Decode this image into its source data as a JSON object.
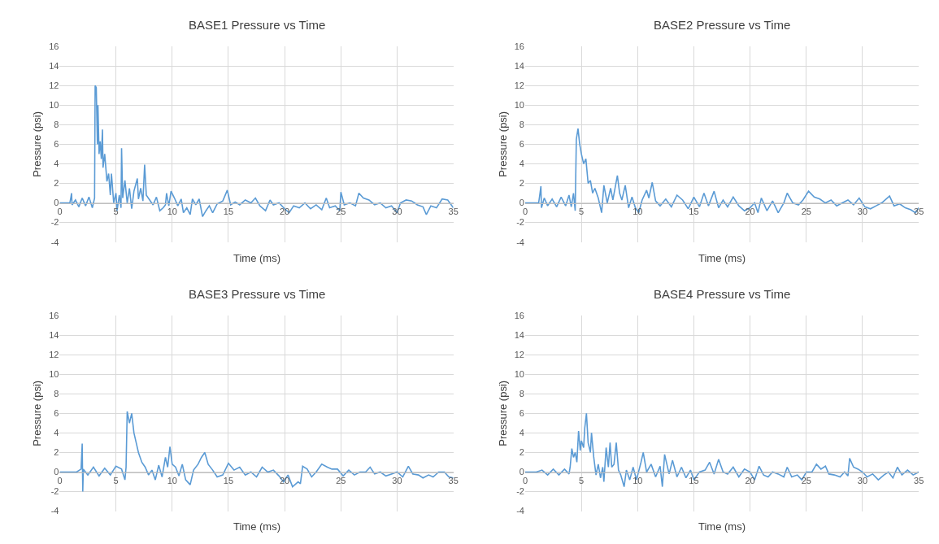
{
  "chart_data": [
    {
      "type": "line",
      "title": "BASE1 Pressure vs Time",
      "xlabel": "Time (ms)",
      "ylabel": "Pressure (psi)",
      "color": "#5b9bd5",
      "xlim": [
        0,
        35
      ],
      "ylim": [
        -4,
        16
      ],
      "xticks": [
        0,
        5,
        10,
        15,
        20,
        25,
        30,
        35
      ],
      "yticks": [
        -4,
        -2,
        0,
        2,
        4,
        6,
        8,
        10,
        12,
        14,
        16
      ],
      "grid": true,
      "x": [
        0,
        0.9,
        1.0,
        1.05,
        1.1,
        1.4,
        1.7,
        2.0,
        2.3,
        2.6,
        2.9,
        3.1,
        3.15,
        3.25,
        3.35,
        3.4,
        3.5,
        3.6,
        3.7,
        3.8,
        3.85,
        4.0,
        4.2,
        4.35,
        4.5,
        4.6,
        4.8,
        5.0,
        5.1,
        5.3,
        5.45,
        5.5,
        5.6,
        5.8,
        6.0,
        6.2,
        6.4,
        6.6,
        6.9,
        7.0,
        7.2,
        7.4,
        7.55,
        7.7,
        8.0,
        8.3,
        8.6,
        8.9,
        9.2,
        9.4,
        9.5,
        9.7,
        9.9,
        10.2,
        10.5,
        10.8,
        11.0,
        11.3,
        11.6,
        11.8,
        12.1,
        12.4,
        12.7,
        13.0,
        13.3,
        13.6,
        14.0,
        14.5,
        14.9,
        15.2,
        15.6,
        16.0,
        16.5,
        17.0,
        17.4,
        17.8,
        18.3,
        18.7,
        19.0,
        19.5,
        20.0,
        20.4,
        20.8,
        21.3,
        21.8,
        22.3,
        22.8,
        23.3,
        23.7,
        24.0,
        24.5,
        24.9,
        25.0,
        25.3,
        25.8,
        26.3,
        26.6,
        27.0,
        27.5,
        28.0,
        28.5,
        29.0,
        29.5,
        30.0,
        30.3,
        30.8,
        31.3,
        31.8,
        32.3,
        32.6,
        33.0,
        33.5,
        34.0,
        34.5,
        35.0
      ],
      "values": [
        0,
        0,
        0.6,
        1.0,
        -0.2,
        0.3,
        -0.4,
        0.5,
        -0.3,
        0.6,
        -0.5,
        0.5,
        12.0,
        11.8,
        6,
        10,
        5,
        6.3,
        4.5,
        7.5,
        3.6,
        5.0,
        2.2,
        3.0,
        0.8,
        3.0,
        0.0,
        1.0,
        -0.8,
        0.8,
        -0.5,
        5.6,
        0.5,
        2.3,
        0.0,
        1.5,
        -0.6,
        1.2,
        2.5,
        0.4,
        1.5,
        0.2,
        3.9,
        0.8,
        0.3,
        -0.2,
        0.6,
        -0.8,
        -0.5,
        -0.2,
        1.0,
        -0.3,
        1.2,
        0.5,
        -0.3,
        0.4,
        -1.0,
        -0.5,
        -1.2,
        0.4,
        -0.2,
        0.4,
        -1.4,
        -0.8,
        -0.3,
        -1.0,
        -0.1,
        0.2,
        1.3,
        -0.2,
        0.1,
        -0.2,
        0.3,
        0.0,
        0.5,
        -0.3,
        -0.8,
        0.3,
        -0.2,
        0.0,
        -0.6,
        -1.0,
        -0.3,
        -0.5,
        0.0,
        -0.6,
        -0.2,
        -0.7,
        0.5,
        -0.5,
        -0.3,
        -0.8,
        1.1,
        -0.2,
        0.0,
        -0.3,
        1.0,
        0.5,
        0.3,
        -0.2,
        0.0,
        -0.5,
        -0.3,
        -1.0,
        0.0,
        0.3,
        0.2,
        -0.2,
        -0.4,
        -1.2,
        -0.3,
        -0.5,
        0.4,
        0.3,
        -0.5
      ]
    },
    {
      "type": "line",
      "title": "BASE2 Pressure vs Time",
      "xlabel": "Time (ms)",
      "ylabel": "Pressure (psi)",
      "color": "#5b9bd5",
      "xlim": [
        0,
        35
      ],
      "ylim": [
        -4,
        16
      ],
      "xticks": [
        0,
        5,
        10,
        15,
        20,
        25,
        30,
        35
      ],
      "yticks": [
        -4,
        -2,
        0,
        2,
        4,
        6,
        8,
        10,
        12,
        14,
        16
      ],
      "grid": true,
      "x": [
        0,
        1.2,
        1.3,
        1.4,
        1.45,
        1.7,
        2.0,
        2.4,
        2.8,
        3.2,
        3.6,
        3.9,
        4.1,
        4.3,
        4.45,
        4.55,
        4.7,
        4.85,
        5.0,
        5.2,
        5.4,
        5.6,
        5.8,
        6.0,
        6.2,
        6.5,
        6.8,
        7.0,
        7.3,
        7.6,
        7.8,
        8.2,
        8.4,
        8.6,
        8.9,
        9.2,
        9.5,
        9.8,
        10.1,
        10.4,
        10.8,
        11.0,
        11.3,
        11.6,
        12.0,
        12.5,
        13.0,
        13.5,
        14.0,
        14.5,
        15.0,
        15.5,
        15.9,
        16.3,
        16.8,
        17.2,
        17.6,
        18.0,
        18.5,
        19.0,
        19.5,
        20.0,
        20.4,
        20.7,
        21.0,
        21.5,
        22.0,
        22.5,
        23.0,
        23.3,
        23.8,
        24.3,
        24.7,
        25.2,
        25.7,
        26.2,
        26.7,
        27.2,
        27.7,
        28.2,
        28.7,
        29.2,
        29.7,
        30.2,
        30.7,
        31.2,
        31.7,
        32.4,
        32.8,
        33.3,
        33.8,
        34.3,
        34.7,
        35.0
      ],
      "values": [
        0,
        0,
        0.8,
        1.7,
        -0.5,
        0.5,
        -0.3,
        0.4,
        -0.4,
        0.6,
        -0.3,
        0.8,
        -0.4,
        1.0,
        -0.8,
        6.5,
        7.6,
        6.0,
        5.0,
        4.0,
        4.5,
        2.0,
        2.3,
        1.0,
        1.5,
        0.5,
        -1.0,
        1.8,
        0.0,
        1.5,
        0.3,
        2.8,
        1.0,
        0.3,
        1.8,
        -0.5,
        0.6,
        -0.5,
        -1.0,
        0.3,
        1.3,
        0.5,
        2.1,
        0.2,
        -0.3,
        0.4,
        -0.4,
        0.8,
        0.3,
        -0.6,
        0.6,
        -0.4,
        1.0,
        -0.3,
        1.2,
        -0.5,
        0.3,
        -0.4,
        0.6,
        -0.3,
        -0.8,
        -0.5,
        0.0,
        -1.0,
        0.5,
        -0.8,
        0.2,
        -1.0,
        0.0,
        1.0,
        0.0,
        -0.2,
        0.3,
        1.2,
        0.6,
        0.4,
        0.0,
        0.3,
        -0.3,
        0.0,
        0.3,
        -0.2,
        0.5,
        -0.4,
        -0.6,
        -0.3,
        0.0,
        0.7,
        -0.3,
        -0.1,
        -0.5,
        -0.7,
        -1.0,
        -0.5
      ]
    },
    {
      "type": "line",
      "title": "BASE3 Pressure vs Time",
      "xlabel": "Time (ms)",
      "ylabel": "Pressure (psi)",
      "color": "#5b9bd5",
      "xlim": [
        0,
        35
      ],
      "ylim": [
        -4,
        16
      ],
      "xticks": [
        0,
        5,
        10,
        15,
        20,
        25,
        30,
        35
      ],
      "yticks": [
        -4,
        -2,
        0,
        2,
        4,
        6,
        8,
        10,
        12,
        14,
        16
      ],
      "grid": true,
      "x": [
        0,
        1.5,
        1.9,
        2.0,
        2.05,
        2.1,
        2.5,
        3.0,
        3.5,
        4.0,
        4.5,
        5.0,
        5.5,
        5.8,
        5.9,
        6.0,
        6.2,
        6.4,
        6.6,
        6.8,
        7.0,
        7.3,
        7.6,
        7.9,
        8.2,
        8.5,
        8.8,
        9.1,
        9.4,
        9.6,
        9.8,
        10.0,
        10.3,
        10.6,
        10.9,
        11.2,
        11.6,
        11.9,
        12.3,
        12.6,
        12.9,
        13.2,
        13.6,
        14.0,
        14.5,
        15.0,
        15.5,
        16.0,
        16.5,
        17.0,
        17.5,
        18.0,
        18.5,
        19.0,
        19.5,
        19.9,
        20.3,
        20.7,
        21.2,
        21.4,
        21.6,
        22.0,
        22.4,
        22.8,
        23.3,
        23.8,
        24.2,
        24.7,
        25.2,
        25.7,
        26.2,
        26.7,
        27.2,
        27.6,
        28.0,
        28.5,
        29.0,
        29.5,
        30.0,
        30.5,
        31.0,
        31.4,
        31.9,
        32.3,
        32.8,
        33.2,
        33.7,
        34.2,
        34.6,
        35.0
      ],
      "values": [
        0,
        0,
        0.3,
        2.9,
        -2.0,
        0.3,
        -0.3,
        0.5,
        -0.4,
        0.4,
        -0.3,
        0.6,
        0.3,
        -0.8,
        0.5,
        6.2,
        5.0,
        6.0,
        4.0,
        3.0,
        2.0,
        1.0,
        0.5,
        -0.3,
        0.2,
        -0.8,
        0.7,
        -0.5,
        1.5,
        0.5,
        2.6,
        0.8,
        0.5,
        -0.4,
        0.8,
        -0.8,
        -1.3,
        0.2,
        0.8,
        1.5,
        2.0,
        0.8,
        0.2,
        -0.5,
        -0.3,
        0.9,
        0.2,
        0.5,
        -0.3,
        0.0,
        -0.5,
        0.5,
        0.0,
        0.2,
        -0.4,
        -1.0,
        -0.3,
        -1.5,
        -1.0,
        -1.2,
        0.6,
        0.3,
        -0.5,
        0.0,
        0.8,
        0.5,
        0.3,
        0.3,
        -0.4,
        0.2,
        -0.3,
        0.0,
        0.0,
        0.5,
        -0.2,
        0.0,
        -0.4,
        -0.2,
        0.0,
        -0.5,
        0.6,
        -0.2,
        -0.3,
        -0.6,
        -0.3,
        -0.5,
        0.0,
        0.0,
        -0.5,
        -0.6
      ]
    },
    {
      "type": "line",
      "title": "BASE4 Pressure vs Time",
      "xlabel": "Time (ms)",
      "ylabel": "Pressure (psi)",
      "color": "#5b9bd5",
      "xlim": [
        0,
        35
      ],
      "ylim": [
        -4,
        16
      ],
      "xticks": [
        0,
        5,
        10,
        15,
        20,
        25,
        30,
        35
      ],
      "yticks": [
        -4,
        -2,
        0,
        2,
        4,
        6,
        8,
        10,
        12,
        14,
        16
      ],
      "grid": true,
      "x": [
        0,
        1.0,
        1.5,
        2.0,
        2.5,
        3.0,
        3.5,
        3.9,
        4.0,
        4.15,
        4.3,
        4.45,
        4.6,
        4.75,
        4.9,
        5.0,
        5.2,
        5.3,
        5.45,
        5.6,
        5.8,
        5.9,
        6.1,
        6.3,
        6.5,
        6.7,
        6.9,
        7.0,
        7.2,
        7.4,
        7.55,
        7.7,
        7.9,
        8.1,
        8.3,
        8.5,
        8.8,
        9.0,
        9.3,
        9.6,
        9.9,
        10.3,
        10.5,
        10.8,
        11.2,
        11.6,
        12.0,
        12.2,
        12.4,
        12.8,
        13.1,
        13.5,
        13.9,
        14.3,
        14.7,
        15.0,
        15.5,
        16.0,
        16.4,
        16.8,
        17.2,
        17.6,
        18.0,
        18.5,
        19.0,
        19.5,
        20.0,
        20.4,
        20.8,
        21.2,
        21.6,
        22.0,
        22.5,
        23.0,
        23.3,
        23.7,
        24.2,
        24.6,
        25.0,
        25.5,
        25.9,
        26.3,
        26.7,
        27.0,
        27.5,
        28.0,
        28.4,
        28.7,
        28.85,
        29.2,
        29.6,
        30.0,
        30.4,
        30.9,
        31.4,
        31.9,
        32.3,
        32.7,
        33.1,
        33.5,
        34.0,
        34.5,
        35.0
      ],
      "values": [
        0,
        0,
        0.2,
        -0.3,
        0.3,
        -0.3,
        0.3,
        -0.2,
        0.5,
        2.4,
        1.5,
        2.0,
        1.0,
        4.2,
        2.2,
        3.2,
        2.5,
        4.5,
        6.0,
        3.0,
        2.0,
        4.0,
        1.5,
        -0.3,
        0.8,
        -0.6,
        0.5,
        -1.0,
        2.5,
        0.5,
        3.0,
        0.5,
        0.8,
        3.0,
        0.2,
        -0.3,
        -1.5,
        0.2,
        -0.8,
        0.5,
        -0.8,
        1.0,
        2.0,
        0.0,
        0.8,
        -0.5,
        0.6,
        -1.5,
        1.8,
        -0.2,
        1.2,
        -0.5,
        0.5,
        -0.6,
        0.2,
        -0.8,
        0.0,
        0.2,
        1.0,
        -0.2,
        1.3,
        0.0,
        -0.2,
        0.5,
        -0.5,
        0.3,
        0.0,
        -0.8,
        0.6,
        -0.3,
        -0.5,
        0.0,
        -0.2,
        -0.5,
        0.5,
        -0.5,
        -0.3,
        -0.8,
        0.0,
        0.0,
        0.8,
        0.3,
        0.6,
        -0.2,
        -0.3,
        -0.5,
        0.0,
        -0.4,
        1.4,
        0.5,
        0.3,
        0.0,
        -0.5,
        -0.2,
        -0.8,
        -0.3,
        0.0,
        -0.6,
        0.5,
        -0.3,
        0.2,
        -0.3,
        0.0
      ]
    }
  ]
}
